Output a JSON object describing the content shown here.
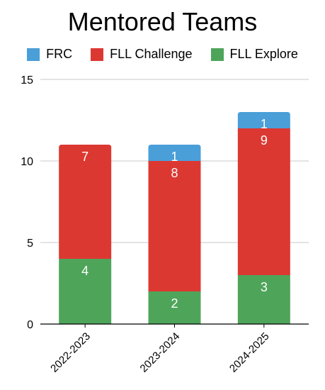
{
  "chart_data": {
    "type": "bar",
    "stacked": true,
    "title": "Mentored Teams",
    "xlabel": "",
    "ylabel": "",
    "categories": [
      "2022-2023",
      "2023-2024",
      "2024-2025"
    ],
    "series": [
      {
        "name": "FLL Explore",
        "color": "#4ea55a",
        "values": [
          4,
          2,
          3
        ]
      },
      {
        "name": "FLL Challenge",
        "color": "#dc3832",
        "values": [
          7,
          8,
          9
        ]
      },
      {
        "name": "FRC",
        "color": "#4a9fd8",
        "values": [
          0,
          1,
          1
        ]
      }
    ],
    "legend_order": [
      "FRC",
      "FLL Challenge",
      "FLL Explore"
    ],
    "ylim": [
      0,
      15
    ],
    "yticks": [
      0,
      5,
      10,
      15
    ],
    "grid": true,
    "legend_position": "top"
  }
}
